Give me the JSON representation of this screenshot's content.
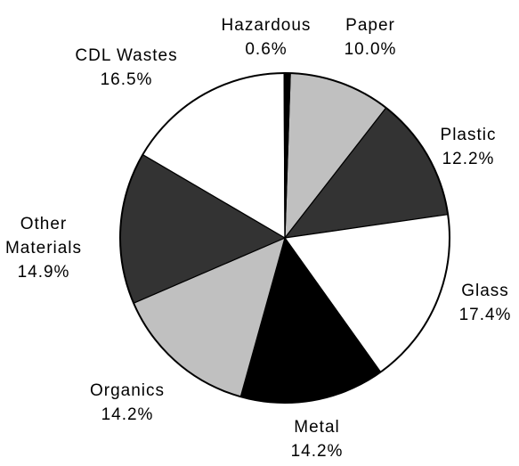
{
  "chart_data": {
    "type": "pie",
    "title": "",
    "slices": [
      {
        "label": "Paper",
        "value": 10.0,
        "display": "10.0%",
        "color": "#c0c0c0"
      },
      {
        "label": "Plastic",
        "value": 12.2,
        "display": "12.2%",
        "color": "#333333"
      },
      {
        "label": "Glass",
        "value": 17.4,
        "display": "17.4%",
        "color": "#ffffff"
      },
      {
        "label": "Metal",
        "value": 14.2,
        "display": "14.2%",
        "color": "#000000"
      },
      {
        "label": "Organics",
        "value": 14.2,
        "display": "14.2%",
        "color": "#c0c0c0"
      },
      {
        "label": "Other Materials",
        "label_lines": [
          "Other",
          "Materials"
        ],
        "value": 14.9,
        "display": "14.9%",
        "color": "#333333"
      },
      {
        "label": "CDL Wastes",
        "value": 16.5,
        "display": "16.5%",
        "color": "#ffffff"
      },
      {
        "label": "Hazardous",
        "value": 0.6,
        "display": "0.6%",
        "color": "#000000"
      }
    ]
  }
}
